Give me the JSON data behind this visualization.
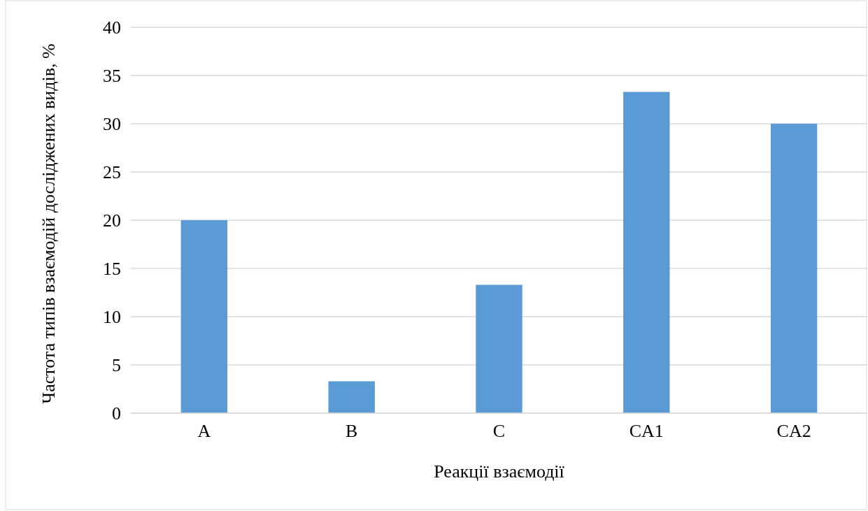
{
  "chart_data": {
    "type": "bar",
    "xlabel": "Реакції взаємодії",
    "ylabel": "Частота типів взаємодій досліджених видів, %",
    "categories": [
      "A",
      "B",
      "C",
      "CA1",
      "CA2"
    ],
    "values": [
      20,
      3.3,
      13.3,
      33.3,
      30
    ],
    "color": "#5b9bd5",
    "ylim": [
      0,
      40
    ],
    "yticks": [
      0,
      5,
      10,
      15,
      20,
      25,
      30,
      35,
      40
    ],
    "grid": "y"
  }
}
